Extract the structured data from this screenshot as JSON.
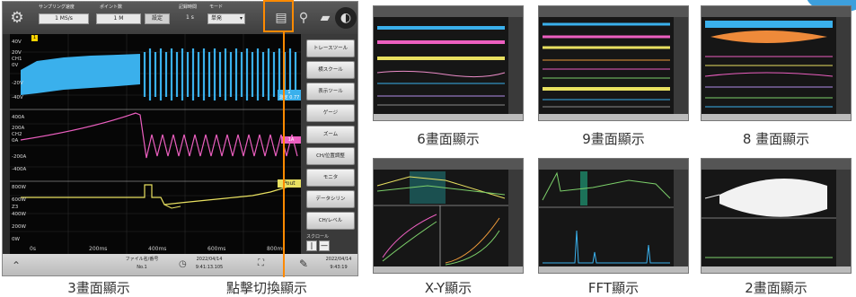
{
  "main_screen": {
    "toolbar": {
      "sampling_label": "サンプリング速度",
      "sampling_value": "1 MS/s",
      "points_label": "ポイント数",
      "points_value": "1 M",
      "settings_button": "設定",
      "record_time_label": "記録時間",
      "record_time_value": "1 s",
      "mode_label": "モード",
      "mode_value": "単発"
    },
    "y_ticks": {
      "ch1": [
        "40V",
        "20V",
        "0V",
        "-20V",
        "-40V"
      ],
      "ch1_name": "CH1",
      "ch2": [
        "400A",
        "200A",
        "0A",
        "-200A",
        "-400A"
      ],
      "ch2_name": "CH2",
      "ch3": [
        "800W",
        "600W",
        "400W",
        "200W",
        "0W"
      ],
      "ch3_name": "Z3"
    },
    "x_ticks": [
      "0s",
      "200ms",
      "400ms",
      "600ms",
      "800ms"
    ],
    "markers": {
      "ch1": "1",
      "ch1_sub": "測定 0.77",
      "ch2": "1A",
      "pout": "Pout"
    },
    "right_panel": [
      "トレースツール",
      "横スクール",
      "表示ツール",
      "ゲージ",
      "ズーム",
      "CH/位置調整",
      "モニタ",
      "データシリン",
      "CH/レベル",
      "スクロール"
    ],
    "status": {
      "file_label": "ファイル名/番号",
      "file_no": "No.1",
      "date1": "2022/04/14",
      "time1": "9:41:13.105",
      "date2": "2022/04/14",
      "time2": "9:43:19"
    },
    "colors": {
      "ch1": "#3ab0ec",
      "ch2": "#ec5fc0",
      "ch3": "#e8e060",
      "highlight": "#ff8a00"
    }
  },
  "captions": {
    "three": "3畫面顯示",
    "click": "點擊切換顯示",
    "six": "6畫面顯示",
    "nine": "9畫面顯示",
    "eight": "8 畫面顯示",
    "xy": "X-Y顯示",
    "fft": "FFT顯示",
    "two": "2畫面顯示"
  }
}
